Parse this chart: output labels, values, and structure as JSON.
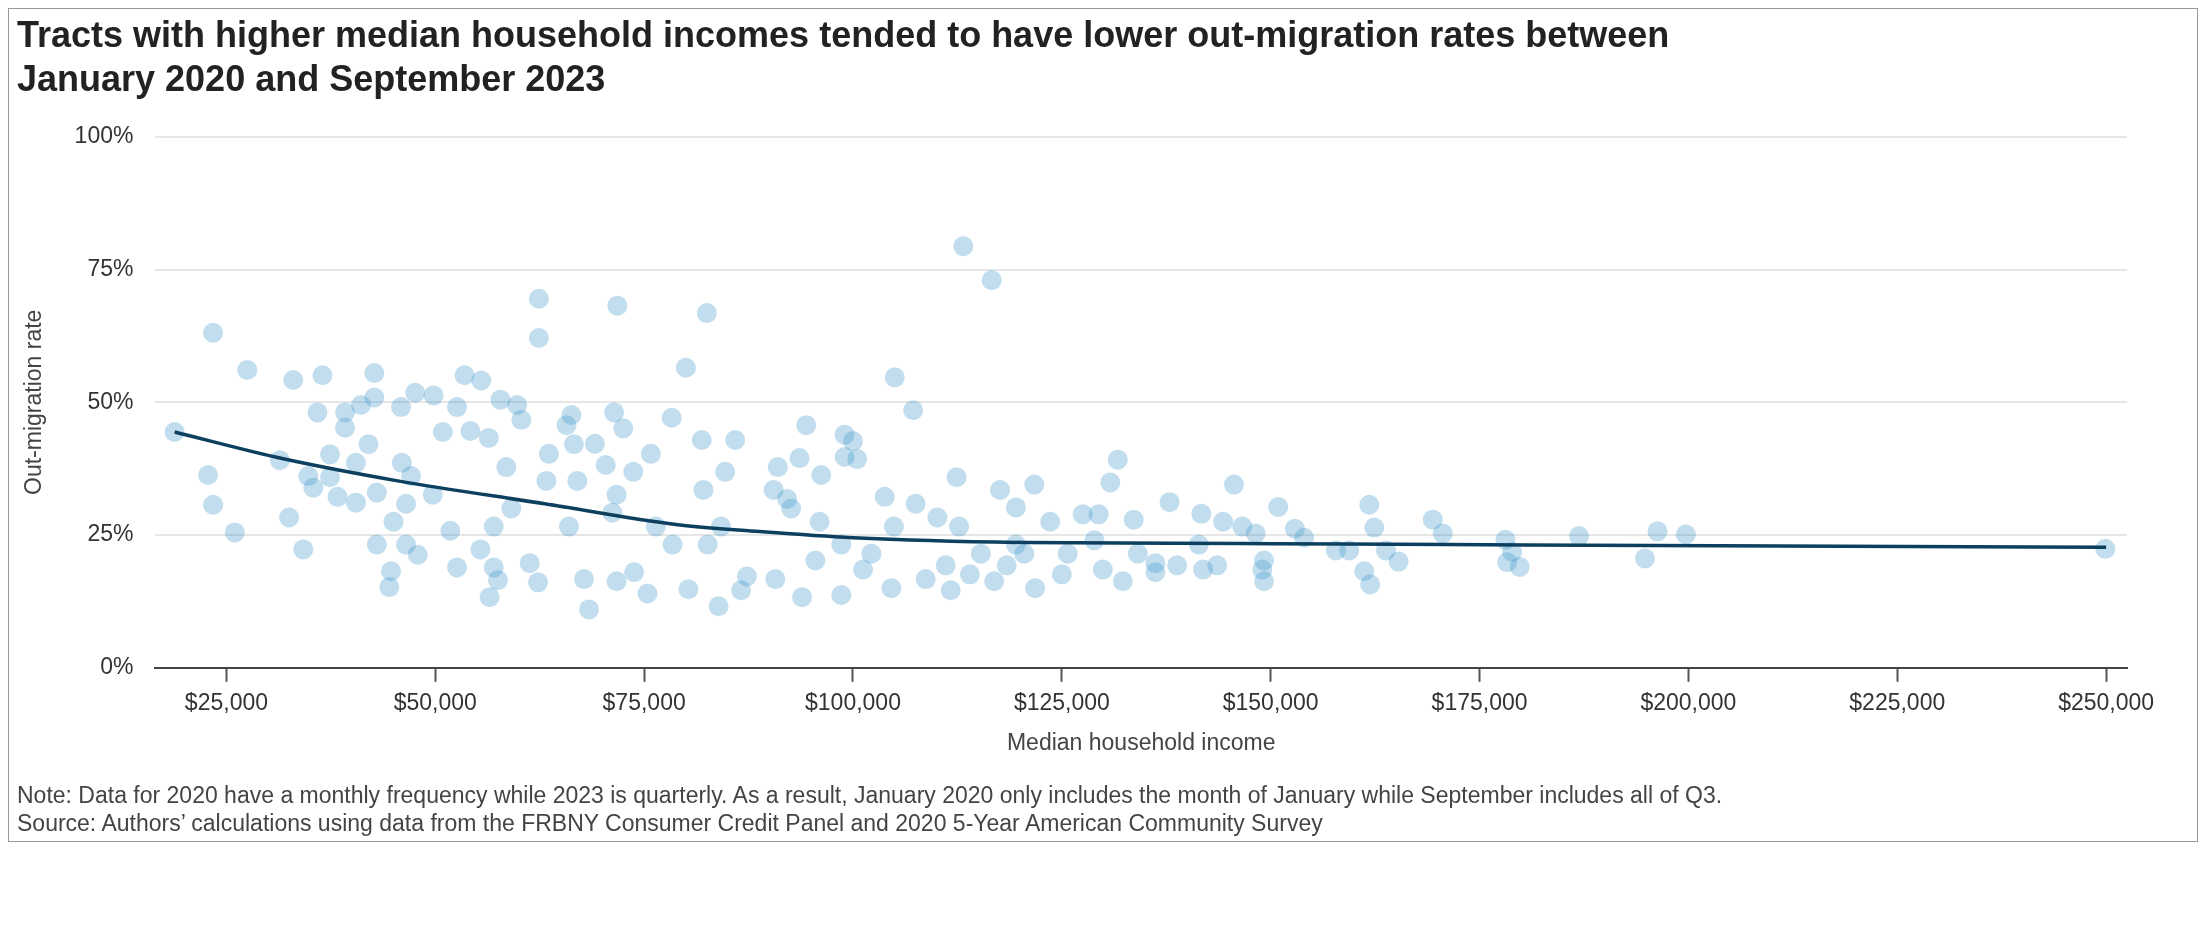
{
  "chart_data": {
    "type": "scatter",
    "title": "Tracts with higher median household incomes tended to have lower out-migration rates between January 2020 and September 2023",
    "xlabel": "Median household income",
    "ylabel": "Out-migration rate",
    "xlim": [
      16500,
      252500
    ],
    "xticks": [
      {
        "value": 25000,
        "label": "$25,000"
      },
      {
        "value": 50000,
        "label": "$50,000"
      },
      {
        "value": 75000,
        "label": "$75,000"
      },
      {
        "value": 100000,
        "label": "$100,000"
      },
      {
        "value": 125000,
        "label": "$125,000"
      },
      {
        "value": 150000,
        "label": "$150,000"
      },
      {
        "value": 175000,
        "label": "$175,000"
      },
      {
        "value": 200000,
        "label": "$200,000"
      },
      {
        "value": 225000,
        "label": "$225,000"
      },
      {
        "value": 250000,
        "label": "$250,000"
      }
    ],
    "ylim": [
      0,
      100
    ],
    "yticks": [
      {
        "value": 0,
        "label": "0%"
      },
      {
        "value": 25,
        "label": "25%"
      },
      {
        "value": 50,
        "label": "50%"
      },
      {
        "value": 75,
        "label": "75%"
      },
      {
        "value": 100,
        "label": "100%"
      }
    ],
    "grid": "y",
    "series": [
      {
        "type": "scatter",
        "marker": "circle",
        "color": "#3593c6",
        "x": [
          18800,
          23400,
          27500,
          33000,
          36500,
          42700,
          42700,
          35900,
          39200,
          41100,
          39200,
          22800,
          23400,
          26000,
          31400,
          32500,
          34200,
          34800,
          35400,
          37400,
          37400,
          38300,
          40500,
          42000,
          43000,
          40500,
          45000,
          43000,
          44700,
          44500,
          45900,
          47600,
          49800,
          53500,
          55500,
          52600,
          50900,
          54200,
          56400,
          57800,
          59800,
          60300,
          62400,
          62400,
          71800,
          82500,
          80000,
          78300,
          66300,
          65700,
          71400,
          72500,
          69100,
          81900,
          85900,
          46000,
          47100,
          46500,
          49700,
          51800,
          52600,
          46500,
          47900,
          55400,
          57000,
          57500,
          56500,
          58500,
          57000,
          59100,
          62300,
          61300,
          63300,
          63600,
          66000,
          66600,
          67000,
          67800,
          68400,
          70400,
          71200,
          71700,
          71700,
          75400,
          73800,
          73700,
          75800,
          76400,
          78400,
          80300,
          82100,
          82600,
          83900,
          84700,
          87300,
          86600,
          90500,
          91000,
          90700,
          93900,
          93600,
          94400,
          92600,
          84200,
          113200,
          116600,
          105000,
          107200,
          99000,
          100000,
          99000,
          100500,
          96200,
          112400,
          117600,
          119500,
          121700,
          103800,
          107500,
          131700,
          130800,
          127500,
          129400,
          137900,
          145600,
          150900,
          161800,
          162400,
          169400,
          141700,
          144300,
          152900,
          154000,
          157800,
          159400,
          163800,
          165300,
          161200,
          161900,
          149200,
          149000,
          149200,
          143600,
          141900,
          138800,
          136200,
          136200,
          132300,
          129900,
          125000,
          121800,
          116900,
          114000,
          111700,
          104600,
          98600,
          95500,
          101200,
          108700,
          111100,
          118400,
          123600,
          133600,
          146600,
          134100,
          148200,
          110100,
          96000,
          102200,
          115300,
          120500,
          125700,
          92100,
          98600,
          104900,
          112700,
          119500,
          128900,
          141400,
          170600,
          178100,
          178900,
          178300,
          179800,
          186900,
          196300,
          199700,
          194800,
          249900
        ],
        "values": [
          44.4,
          63.1,
          56.1,
          54.2,
          55.1,
          55.5,
          50.9,
          48.1,
          48.1,
          49.5,
          45.2,
          36.3,
          30.7,
          25.5,
          39.1,
          28.3,
          22.3,
          36.1,
          33.9,
          40.2,
          35.9,
          32.2,
          38.6,
          42.1,
          33.0,
          31.1,
          27.5,
          23.2,
          18.2,
          15.2,
          49.1,
          51.8,
          51.3,
          55.1,
          54.1,
          49.1,
          44.4,
          44.6,
          43.3,
          50.5,
          49.5,
          46.7,
          69.5,
          62.1,
          68.2,
          66.8,
          56.5,
          47.1,
          47.6,
          45.7,
          48.1,
          45.1,
          42.2,
          42.9,
          42.9,
          38.6,
          36.1,
          30.9,
          32.6,
          25.8,
          18.9,
          23.2,
          21.3,
          22.3,
          18.9,
          16.5,
          13.3,
          37.8,
          26.6,
          30.0,
          16.1,
          19.7,
          35.2,
          40.3,
          26.6,
          42.1,
          35.2,
          16.7,
          11.0,
          38.2,
          29.2,
          32.6,
          16.3,
          14.0,
          18.0,
          36.9,
          40.3,
          26.6,
          23.2,
          14.8,
          33.5,
          23.2,
          11.6,
          36.9,
          17.2,
          14.6,
          33.5,
          37.8,
          16.7,
          13.3,
          39.5,
          45.7,
          30.0,
          26.6,
          79.4,
          73.0,
          54.7,
          48.5,
          43.9,
          42.7,
          39.7,
          39.3,
          36.3,
          35.9,
          33.5,
          30.2,
          34.5,
          32.2,
          30.9,
          39.2,
          34.9,
          28.9,
          28.9,
          31.2,
          34.5,
          30.3,
          30.7,
          26.4,
          27.9,
          29.0,
          27.5,
          26.2,
          24.5,
          22.1,
          22.1,
          22.1,
          20.0,
          18.2,
          15.7,
          16.3,
          18.5,
          20.2,
          19.3,
          18.5,
          19.3,
          18.0,
          19.7,
          16.3,
          18.5,
          17.6,
          15.0,
          16.3,
          17.6,
          14.6,
          15.0,
          13.7,
          20.2,
          18.5,
          16.7,
          19.3,
          19.3,
          27.5,
          27.9,
          26.6,
          21.5,
          25.3,
          28.3,
          27.5,
          21.5,
          21.5,
          21.5,
          21.5,
          31.8,
          23.2,
          26.6,
          26.6,
          23.2,
          24.0,
          23.2,
          25.3,
          24.1,
          21.8,
          19.9,
          19.0,
          24.8,
          25.7,
          25.1,
          20.6,
          22.4
        ]
      },
      {
        "type": "line",
        "marker": "none",
        "line_style": "solid",
        "color": "#0d3f5f",
        "x": [
          18800,
          31400,
          45500,
          63100,
          78800,
          89200,
          100000,
          120500,
          146600,
          171000,
          250000
        ],
        "values": [
          44.4,
          39.5,
          35.2,
          30.9,
          27.0,
          25.6,
          24.5,
          23.6,
          23.4,
          23.2,
          22.7
        ]
      }
    ],
    "annotations": [
      "Note: Data for 2020 have a monthly frequency while 2023 is quarterly. As a result, January 2020 only includes the month of January while September includes all of Q3.",
      "Source: Authors’ calculations using data from the FRBNY Consumer Credit Panel and 2020 5-Year American Community Survey"
    ]
  }
}
